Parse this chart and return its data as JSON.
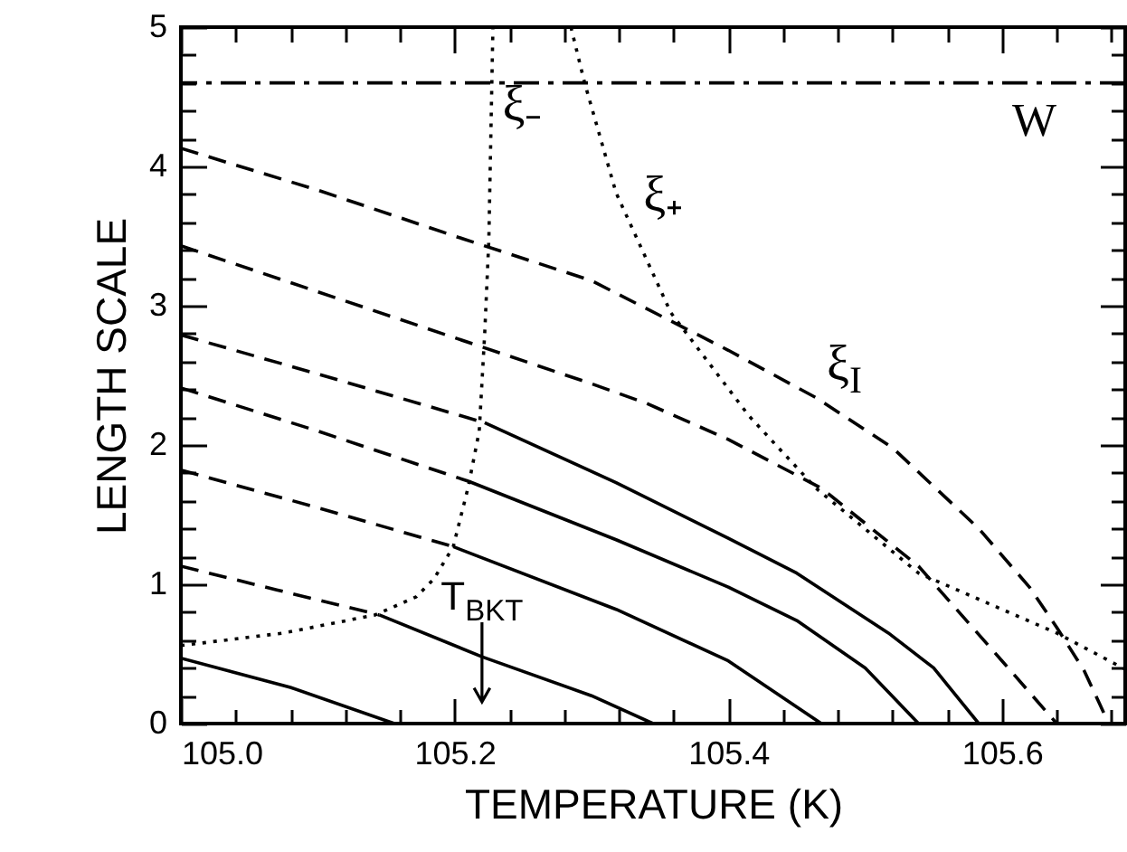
{
  "chart_data": {
    "type": "line",
    "xlabel": "TEMPERATURE (K)",
    "ylabel": "LENGTH SCALE",
    "xlim": [
      105.0,
      105.69
    ],
    "ylim": [
      0,
      5
    ],
    "xticks": [
      {
        "value": 105.0,
        "label": "105.0"
      },
      {
        "value": 105.04,
        "label": null
      },
      {
        "value": 105.08,
        "label": null
      },
      {
        "value": 105.12,
        "label": null
      },
      {
        "value": 105.16,
        "label": null
      },
      105.2,
      {
        "value": 105.24,
        "label": null
      },
      {
        "value": 105.28,
        "label": null
      },
      {
        "value": 105.32,
        "label": null
      },
      {
        "value": 105.36,
        "label": null
      },
      105.4,
      {
        "value": 105.44,
        "label": null
      },
      {
        "value": 105.48,
        "label": null
      },
      {
        "value": 105.52,
        "label": null
      },
      {
        "value": 105.56,
        "label": null
      },
      105.6,
      {
        "value": 105.64,
        "label": null
      },
      {
        "value": 105.68,
        "label": null
      }
    ],
    "yticks": [
      0,
      {
        "value": 0.2,
        "label": null
      },
      {
        "value": 0.4,
        "label": null
      },
      {
        "value": 0.6,
        "label": null
      },
      {
        "value": 0.8,
        "label": null
      },
      1,
      {
        "value": 1.2,
        "label": null
      },
      {
        "value": 1.4,
        "label": null
      },
      {
        "value": 1.6,
        "label": null
      },
      {
        "value": 1.8,
        "label": null
      },
      2,
      {
        "value": 2.2,
        "label": null
      },
      {
        "value": 2.4,
        "label": null
      },
      {
        "value": 2.6,
        "label": null
      },
      {
        "value": 2.8,
        "label": null
      },
      3,
      {
        "value": 3.2,
        "label": null
      },
      {
        "value": 3.4,
        "label": null
      },
      {
        "value": 3.6,
        "label": null
      },
      {
        "value": 3.8,
        "label": null
      },
      4,
      {
        "value": 4.2,
        "label": null
      },
      {
        "value": 4.4,
        "label": null
      },
      {
        "value": 4.6,
        "label": null
      },
      {
        "value": 4.8,
        "label": null
      },
      5
    ],
    "series": [
      {
        "color": "#000000",
        "line_style": "dashed",
        "x": [
          105.0,
          105.1,
          105.2,
          105.3,
          105.4,
          105.464,
          105.52,
          105.583,
          105.62,
          105.64,
          105.66,
          105.678
        ],
        "values": [
          4.13,
          3.83,
          3.5,
          3.18,
          2.68,
          2.34,
          1.98,
          1.4,
          0.98,
          0.69,
          0.38,
          0
        ]
      },
      {
        "color": "#000000",
        "line_style": "dashed",
        "x": [
          105.0,
          105.1,
          105.2,
          105.3,
          105.34,
          105.4,
          105.468,
          105.539,
          105.6,
          105.64
        ],
        "values": [
          3.43,
          3.1,
          2.77,
          2.44,
          2.3,
          2.04,
          1.69,
          1.13,
          0.45,
          0
        ]
      },
      {
        "color": "#000000",
        "line_style": "dashed",
        "x": [
          105.0,
          105.1,
          105.222
        ],
        "values": [
          2.79,
          2.51,
          2.16
        ]
      },
      {
        "color": "#000000",
        "line_style": "solid",
        "x": [
          105.222,
          105.318,
          105.4,
          105.45,
          105.517,
          105.55,
          105.583
        ],
        "values": [
          2.16,
          1.73,
          1.33,
          1.08,
          0.65,
          0.4,
          0
        ]
      },
      {
        "color": "#000000",
        "line_style": "dashed",
        "x": [
          105.0,
          105.1,
          105.21
        ],
        "values": [
          2.41,
          2.1,
          1.74
        ]
      },
      {
        "color": "#000000",
        "line_style": "solid",
        "x": [
          105.21,
          105.318,
          105.4,
          105.45,
          105.5,
          105.539
        ],
        "values": [
          1.74,
          1.32,
          0.98,
          0.74,
          0.4,
          0
        ]
      },
      {
        "color": "#000000",
        "line_style": "dashed",
        "x": [
          105.0,
          105.1,
          105.199
        ],
        "values": [
          1.82,
          1.55,
          1.27
        ]
      },
      {
        "color": "#000000",
        "line_style": "solid",
        "x": [
          105.199,
          105.318,
          105.4,
          105.468
        ],
        "values": [
          1.27,
          0.82,
          0.45,
          0
        ]
      },
      {
        "color": "#000000",
        "line_style": "dashed",
        "x": [
          105.0,
          105.07,
          105.145
        ],
        "values": [
          1.13,
          0.96,
          0.78
        ]
      },
      {
        "color": "#000000",
        "line_style": "solid",
        "x": [
          105.145,
          105.22,
          105.3,
          105.345
        ],
        "values": [
          0.78,
          0.48,
          0.2,
          0
        ]
      },
      {
        "color": "#000000",
        "line_style": "solid",
        "x": [
          105.0,
          105.08,
          105.156
        ],
        "values": [
          0.47,
          0.26,
          0
        ]
      },
      {
        "color": "#000000",
        "line_style": "dotted",
        "x": [
          105.0,
          105.075,
          105.142,
          105.172,
          105.185,
          105.199,
          105.21,
          105.218,
          105.222,
          105.225,
          105.228
        ],
        "values": [
          0.56,
          0.65,
          0.78,
          0.91,
          1.04,
          1.27,
          1.7,
          2.1,
          2.8,
          3.47,
          5
        ]
      },
      {
        "color": "#000000",
        "line_style": "dotted",
        "x": [
          105.285,
          105.295,
          105.318,
          105.358,
          105.415,
          105.464,
          105.539,
          105.6,
          105.64,
          105.69
        ],
        "values": [
          5,
          4.6,
          3.81,
          2.95,
          2.21,
          1.69,
          1.08,
          0.82,
          0.65,
          0.39
        ]
      }
    ],
    "ref_lines": [
      {
        "axis": "y",
        "value": 4.6,
        "line_style": "dashdot",
        "color": "#000000",
        "label": "W"
      }
    ],
    "annotations": [
      {
        "text": "ξ₋",
        "x": 105.227,
        "y": 4.2
      },
      {
        "text": "ξ₊",
        "x": 105.33,
        "y": 3.55
      },
      {
        "text": "ξ$_{I}$",
        "x": 105.464,
        "y": 2.34
      },
      {
        "text": "T$_{BKT}$",
        "x": 105.22
      }
    ]
  }
}
